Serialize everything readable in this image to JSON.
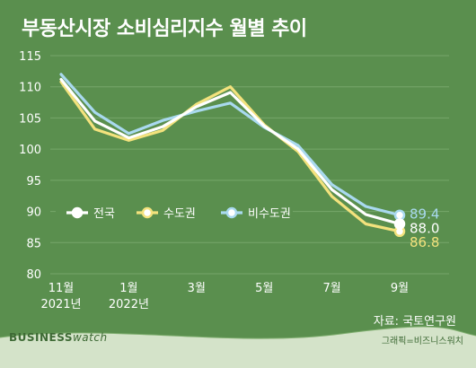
{
  "title": "부동산시장 소비심리지수 월별 추이",
  "source": "자료: 국토연구원",
  "footer": {
    "brand_bold": "BUSINESS",
    "brand_light": "watch",
    "credit": "그래픽=비즈니스워치"
  },
  "colors": {
    "background": "#5a8f4e",
    "grid": "#76a66a",
    "national": "#ffffff",
    "capital": "#f3e27d",
    "non_capital": "#a9d9ef"
  },
  "chart_data": {
    "type": "line",
    "title": "부동산시장 소비심리지수 월별 추이",
    "x": [
      "2021-11",
      "2021-12",
      "2022-01",
      "2022-02",
      "2022-03",
      "2022-04",
      "2022-05",
      "2022-06",
      "2022-07",
      "2022-08",
      "2022-09"
    ],
    "x_tick_labels": [
      {
        "x": "2021-11",
        "lines": [
          "11월",
          "2021년"
        ]
      },
      {
        "x": "2022-01",
        "lines": [
          "1월",
          "2022년"
        ]
      },
      {
        "x": "2022-03",
        "lines": [
          "3월"
        ]
      },
      {
        "x": "2022-05",
        "lines": [
          "5월"
        ]
      },
      {
        "x": "2022-07",
        "lines": [
          "7월"
        ]
      },
      {
        "x": "2022-09",
        "lines": [
          "9월"
        ]
      }
    ],
    "ylim": [
      80,
      115
    ],
    "y_ticks": [
      80,
      85,
      90,
      95,
      100,
      105,
      110,
      115
    ],
    "grid": true,
    "legend": "left",
    "series": [
      {
        "name": "전국",
        "color_key": "national",
        "values": [
          111.2,
          104.5,
          101.8,
          103.6,
          106.8,
          109.1,
          103.7,
          100.0,
          93.5,
          89.5,
          88.0
        ],
        "end_label": "88.0"
      },
      {
        "name": "수도권",
        "color_key": "capital",
        "values": [
          110.8,
          103.2,
          101.4,
          103.0,
          107.2,
          110.0,
          103.9,
          99.6,
          92.4,
          88.0,
          86.8
        ],
        "end_label": "86.8"
      },
      {
        "name": "비수도권",
        "color_key": "non_capital",
        "values": [
          112.0,
          105.9,
          102.5,
          104.6,
          106.1,
          107.4,
          103.5,
          100.6,
          94.3,
          90.8,
          89.4
        ],
        "end_label": "89.4"
      }
    ]
  }
}
